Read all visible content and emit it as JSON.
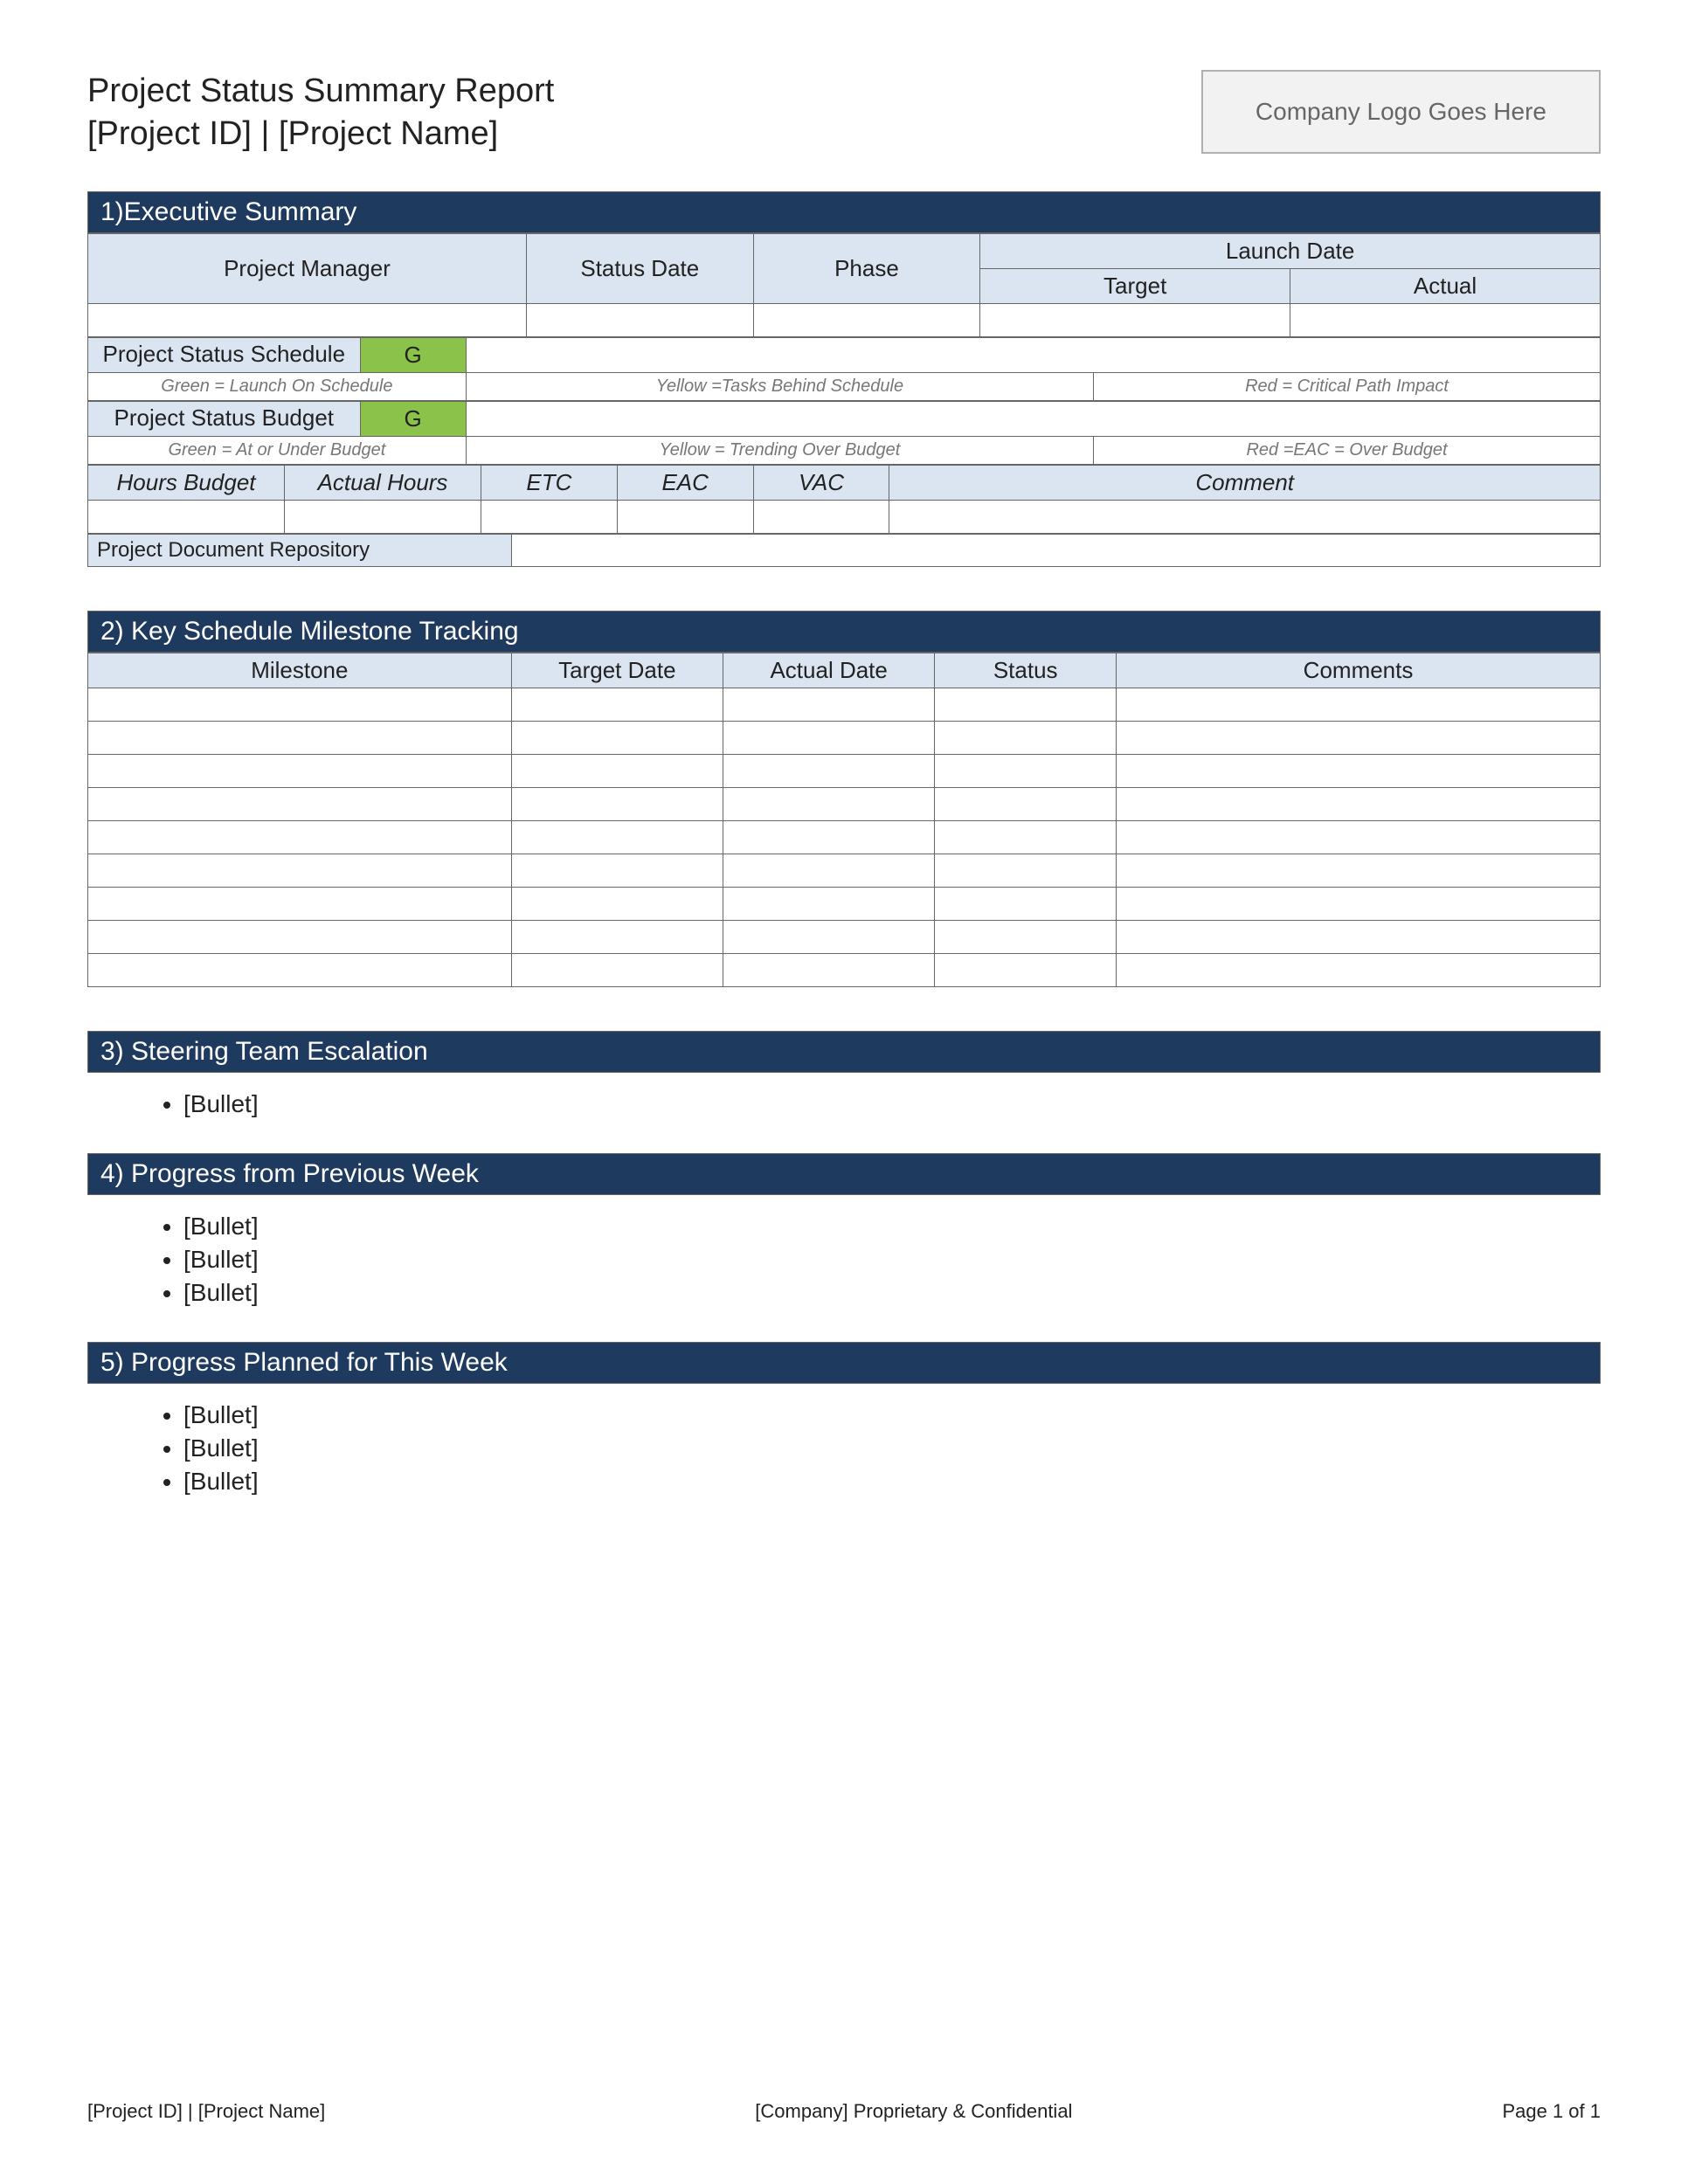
{
  "colors": {
    "section_bar_bg": "#1f3a5f",
    "section_bar_text": "#ffffff",
    "header_light_bg": "#dbe5f1",
    "status_green_bg": "#8bc34a",
    "border": "#666666",
    "logo_bg": "#f2f2f2",
    "legend_text": "#777777"
  },
  "header": {
    "title_line1": "Project Status Summary Report",
    "title_line2": "[Project ID] | [Project Name]",
    "logo_placeholder": "Company Logo Goes Here"
  },
  "section1": {
    "title": "1)Executive Summary",
    "cols": {
      "project_manager": "Project Manager",
      "status_date": "Status Date",
      "phase": "Phase",
      "launch_date": "Launch Date",
      "target": "Target",
      "actual": "Actual"
    },
    "status_schedule_label": "Project Status Schedule",
    "status_schedule_value": "G",
    "status_budget_label": "Project Status Budget",
    "status_budget_value": "G",
    "legend_schedule": {
      "green": "Green = Launch On Schedule",
      "yellow": "Yellow =Tasks Behind Schedule",
      "red": "Red = Critical Path Impact"
    },
    "legend_budget": {
      "green": "Green = At or Under Budget",
      "yellow": "Yellow = Trending Over Budget",
      "red": "Red =EAC = Over Budget"
    },
    "budget_cols": {
      "hours_budget": "Hours Budget",
      "actual_hours": "Actual Hours",
      "etc": "ETC",
      "eac": "EAC",
      "vac": "VAC",
      "comment": "Comment"
    },
    "repo_label": "Project Document Repository"
  },
  "section2": {
    "title": "2) Key Schedule Milestone Tracking",
    "cols": {
      "milestone": "Milestone",
      "target_date": "Target Date",
      "actual_date": "Actual Date",
      "status": "Status",
      "comments": "Comments"
    },
    "row_count": 9
  },
  "section3": {
    "title": "3) Steering Team Escalation",
    "bullets": [
      "[Bullet]"
    ]
  },
  "section4": {
    "title": "4) Progress from Previous Week",
    "bullets": [
      "[Bullet]",
      "[Bullet]",
      "[Bullet]"
    ]
  },
  "section5": {
    "title": "5) Progress Planned for This Week",
    "bullets": [
      "[Bullet]",
      "[Bullet]",
      "[Bullet]"
    ]
  },
  "footer": {
    "left": "[Project ID] | [Project Name]",
    "center": "[Company] Proprietary & Confidential",
    "right": "Page 1 of 1"
  }
}
